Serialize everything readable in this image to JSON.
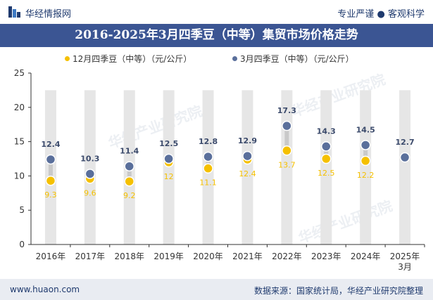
{
  "header": {
    "brand": "华经情报网",
    "tagline": "专业严谨 ● 客观科学",
    "title": "2016-2025年3月四季豆（中等）集贸市场价格走势"
  },
  "legend": {
    "series1": "12月四季豆（中等）（元/公斤）",
    "series2": "3月四季豆（中等）（元/公斤）"
  },
  "footer": {
    "url": "www.huaon.com",
    "source": "数据来源：国家统计局，华经产业研究院整理"
  },
  "watermarks": [
    "华经产业研究院",
    "华经产业研究院",
    "华经产业研究院"
  ],
  "colors": {
    "december": "#f5c000",
    "march": "#5a6f9b",
    "column": "#e6e6e6",
    "title_bg": "#3b5593"
  },
  "chart_data": {
    "type": "scatter",
    "categories": [
      "2016年",
      "2017年",
      "2018年",
      "2019年",
      "2020年",
      "2021年",
      "2022年",
      "2023年",
      "2024年",
      "2025年3月"
    ],
    "series": [
      {
        "name": "12月四季豆（中等）（元/公斤）",
        "values": [
          9.3,
          9.6,
          9.2,
          12,
          11.1,
          12.4,
          13.7,
          12.5,
          12.2,
          null
        ],
        "labels": [
          "9.3",
          "9.6",
          "9.2",
          "12",
          "11.1",
          "12.4",
          "13.7",
          "12.5",
          "12.2",
          ""
        ]
      },
      {
        "name": "3月四季豆（中等）（元/公斤）",
        "values": [
          12.4,
          10.3,
          11.4,
          12.5,
          12.8,
          12.9,
          17.3,
          14.3,
          14.5,
          12.7
        ],
        "labels": [
          "12.4",
          "10.3",
          "11.4",
          "12.5",
          "12.8",
          "12.9",
          "17.3",
          "14.3",
          "14.5",
          "12.7"
        ]
      }
    ],
    "ylim": [
      0,
      25
    ],
    "yticks": [
      "0",
      "5",
      "10",
      "15",
      "20",
      "25"
    ],
    "grid": false,
    "legend_position": "top"
  }
}
